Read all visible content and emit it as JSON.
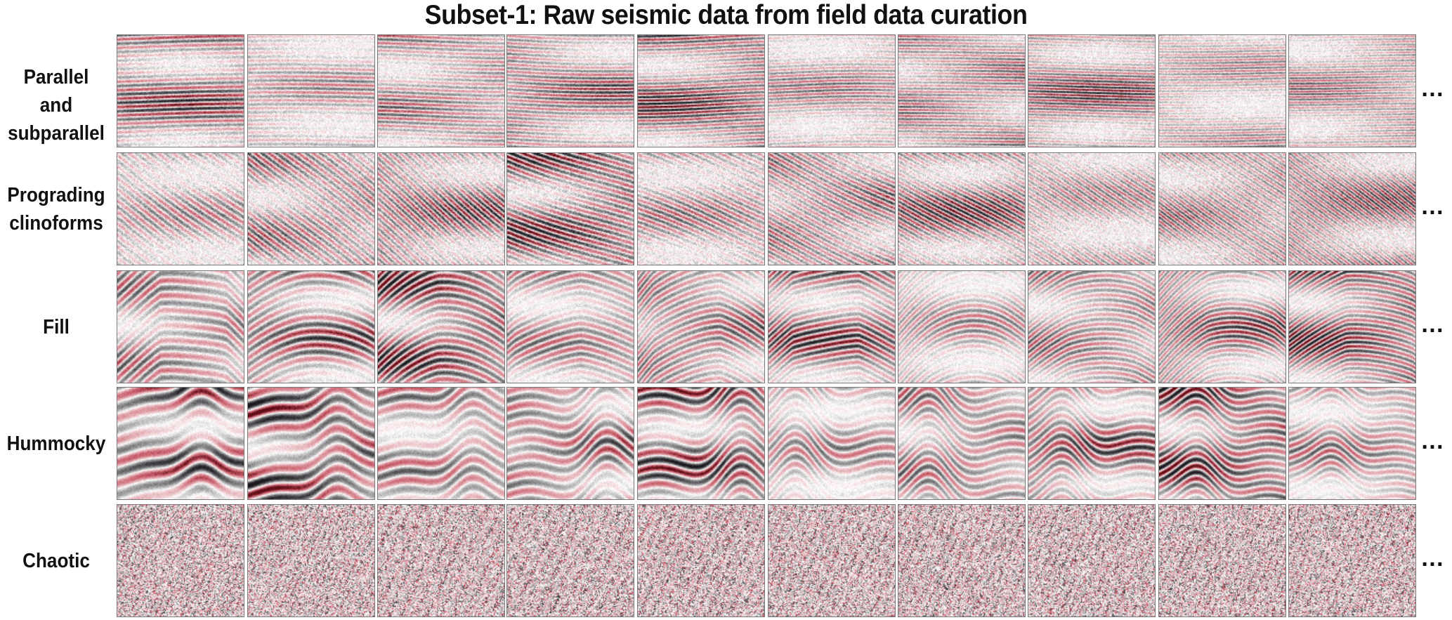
{
  "title": "Subset-1: Raw seismic data from field data curation",
  "rows": [
    {
      "label_lines": [
        "Parallel and",
        "subparallel"
      ],
      "pattern": "parallel"
    },
    {
      "label_lines": [
        "Prograding",
        "clinoforms"
      ],
      "pattern": "prograding"
    },
    {
      "label_lines": [
        "Fill"
      ],
      "pattern": "fill"
    },
    {
      "label_lines": [
        "Hummocky"
      ],
      "pattern": "hummocky"
    },
    {
      "label_lines": [
        "Chaotic"
      ],
      "pattern": "chaotic"
    }
  ],
  "columns_per_row": 10,
  "continuation": "…",
  "colormap": {
    "positive": "#b2182b",
    "mid": "#ffffff",
    "negative": "#1a1a1a"
  }
}
